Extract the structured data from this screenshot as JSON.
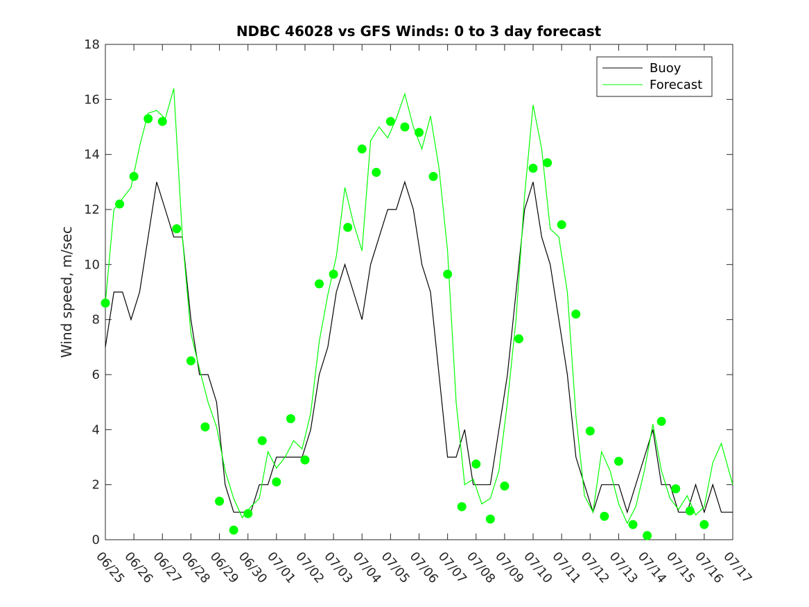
{
  "chart_data": {
    "type": "line",
    "title": "NDBC 46028 vs GFS Winds: 0 to 3 day forecast",
    "ylabel": "Wind speed, m/sec",
    "xlabel": "",
    "xlim": [
      0,
      22
    ],
    "ylim": [
      0,
      18
    ],
    "y_ticks": [
      0,
      2,
      4,
      6,
      8,
      10,
      12,
      14,
      16,
      18
    ],
    "x_tick_labels": [
      "06/25",
      "06/26",
      "06/27",
      "06/28",
      "06/29",
      "06/30",
      "07/01",
      "07/02",
      "07/03",
      "07/04",
      "07/05",
      "07/06",
      "07/07",
      "07/08",
      "07/09",
      "07/10",
      "07/11",
      "07/12",
      "07/13",
      "07/14",
      "07/15",
      "07/16",
      "07/17"
    ],
    "grid": false,
    "legend": {
      "position": "top-right",
      "entries": [
        "Buoy",
        "Forecast"
      ]
    },
    "colors": {
      "buoy": "#000000",
      "forecast": "#00ff00",
      "axis": "#262626"
    },
    "series": [
      {
        "name": "Buoy",
        "x": [
          0,
          0.3,
          0.6,
          0.9,
          1.2,
          1.5,
          1.8,
          2.1,
          2.4,
          2.7,
          3.0,
          3.3,
          3.6,
          3.9,
          4.2,
          4.5,
          4.8,
          5.1,
          5.4,
          5.7,
          6.0,
          6.3,
          6.6,
          6.9,
          7.2,
          7.5,
          7.8,
          8.1,
          8.4,
          8.7,
          9.0,
          9.3,
          9.6,
          9.9,
          10.2,
          10.5,
          10.8,
          11.1,
          11.4,
          11.7,
          12.0,
          12.3,
          12.6,
          12.9,
          13.2,
          13.5,
          13.8,
          14.1,
          14.4,
          14.7,
          15.0,
          15.3,
          15.6,
          15.9,
          16.2,
          16.5,
          16.8,
          17.1,
          17.4,
          17.7,
          18.0,
          18.3,
          18.6,
          18.9,
          19.2,
          19.5,
          19.8,
          20.1,
          20.4,
          20.7,
          21.0,
          21.3,
          21.6,
          22.0
        ],
        "values": [
          7,
          9,
          9,
          8,
          9,
          11,
          13,
          12,
          11,
          11,
          8,
          6,
          6,
          5,
          2,
          1,
          1,
          1,
          2,
          2,
          3,
          3,
          3,
          3,
          4,
          6,
          7,
          9,
          10,
          9,
          8,
          10,
          11,
          12,
          12,
          13,
          12,
          10,
          9,
          6,
          3,
          3,
          4,
          2,
          2,
          2,
          4,
          6,
          9,
          12,
          13,
          11,
          10,
          8,
          6,
          3,
          2,
          1,
          2,
          2,
          2,
          1,
          2,
          3,
          4,
          2,
          2,
          1,
          1,
          2,
          1,
          2,
          1,
          1
        ]
      },
      {
        "name": "Forecast",
        "x": [
          0,
          0.3,
          0.6,
          0.9,
          1.2,
          1.5,
          1.8,
          2.1,
          2.4,
          2.7,
          3.0,
          3.3,
          3.6,
          3.9,
          4.2,
          4.5,
          4.8,
          5.1,
          5.4,
          5.7,
          6.0,
          6.3,
          6.6,
          6.9,
          7.2,
          7.5,
          7.8,
          8.1,
          8.4,
          8.7,
          9.0,
          9.3,
          9.6,
          9.9,
          10.2,
          10.5,
          10.8,
          11.1,
          11.4,
          11.7,
          12.0,
          12.3,
          12.6,
          12.9,
          13.2,
          13.5,
          13.8,
          14.1,
          14.4,
          14.7,
          15.0,
          15.3,
          15.6,
          15.9,
          16.2,
          16.5,
          16.8,
          17.1,
          17.4,
          17.7,
          18.0,
          18.3,
          18.6,
          18.9,
          19.2,
          19.5,
          19.8,
          20.1,
          20.4,
          20.7,
          21.0,
          21.3,
          21.6,
          22.0
        ],
        "values": [
          8.6,
          12.0,
          12.4,
          12.8,
          14.3,
          15.5,
          15.6,
          15.3,
          16.4,
          11.0,
          7.5,
          6.2,
          5.0,
          4.1,
          2.5,
          1.5,
          0.8,
          1.2,
          1.5,
          3.2,
          2.6,
          3.0,
          3.6,
          3.3,
          4.6,
          7.2,
          8.9,
          10.3,
          12.8,
          11.5,
          10.5,
          14.5,
          15.0,
          14.6,
          15.3,
          16.2,
          15.0,
          14.2,
          15.4,
          13.5,
          10.5,
          5.0,
          2.0,
          2.2,
          1.3,
          1.5,
          2.5,
          5.0,
          8.0,
          12.5,
          15.8,
          14.2,
          11.3,
          11.0,
          9.0,
          4.5,
          1.6,
          1.0,
          3.2,
          2.5,
          1.3,
          0.6,
          1.2,
          2.5,
          4.2,
          2.5,
          1.5,
          1.1,
          1.6,
          0.9,
          1.2,
          2.8,
          3.5,
          2.0
        ]
      }
    ],
    "forecast_markers": {
      "x": [
        0.0,
        0.5,
        1.0,
        1.5,
        2.0,
        2.5,
        3.0,
        3.5,
        4.0,
        4.5,
        5.0,
        5.5,
        6.0,
        6.5,
        7.0,
        7.5,
        8.0,
        8.5,
        9.0,
        9.5,
        10.0,
        10.5,
        11.0,
        11.5,
        12.0,
        12.5,
        13.0,
        13.5,
        14.0,
        14.5,
        15.0,
        15.5,
        16.0,
        16.5,
        17.0,
        17.5,
        18.0,
        18.5,
        19.0,
        19.5,
        20.0,
        20.5,
        21.0
      ],
      "values": [
        8.6,
        12.2,
        13.2,
        15.3,
        15.2,
        11.3,
        6.5,
        4.1,
        1.4,
        0.35,
        0.95,
        3.6,
        2.1,
        4.4,
        2.9,
        9.3,
        9.65,
        11.35,
        14.2,
        13.35,
        15.2,
        15.0,
        14.8,
        13.2,
        9.65,
        1.2,
        2.75,
        0.75,
        1.95,
        7.3,
        13.5,
        13.7,
        11.45,
        8.2,
        3.95,
        0.85,
        2.85,
        0.55,
        0.15,
        4.3,
        1.85,
        1.05,
        0.55
      ]
    }
  }
}
